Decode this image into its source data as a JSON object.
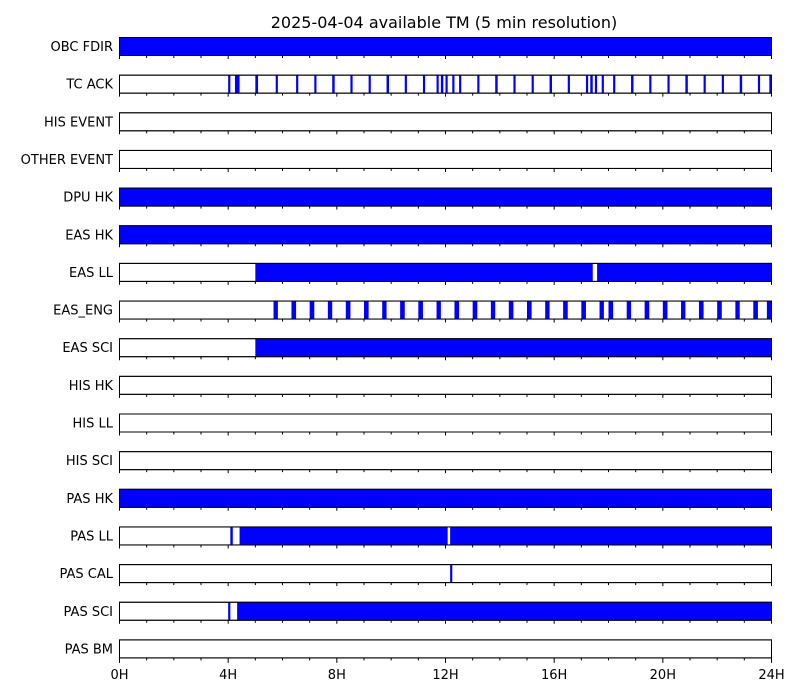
{
  "chart_data": {
    "type": "timeline",
    "title": "2025-04-04 available TM (5 min resolution)",
    "x_unit": "hour",
    "xlim": [
      0,
      24
    ],
    "x_ticks": [
      {
        "value": 0,
        "label": "0H"
      },
      {
        "value": 4,
        "label": "4H"
      },
      {
        "value": 8,
        "label": "8H"
      },
      {
        "value": 12,
        "label": "12H"
      },
      {
        "value": 16,
        "label": "16H"
      },
      {
        "value": 20,
        "label": "20H"
      },
      {
        "value": 24,
        "label": "24H"
      }
    ],
    "minor_tick_step_hours": 1,
    "fill_color": "#0000ff",
    "rows": [
      {
        "label": "OBC FDIR",
        "intervals": [
          [
            0,
            24
          ]
        ]
      },
      {
        "label": "TC ACK",
        "intervals": [
          [
            4.0,
            4.08
          ],
          [
            4.25,
            4.42
          ],
          [
            5.0,
            5.1
          ],
          [
            5.75,
            5.83
          ],
          [
            6.5,
            6.58
          ],
          [
            7.17,
            7.25
          ],
          [
            7.83,
            7.92
          ],
          [
            8.5,
            8.58
          ],
          [
            9.17,
            9.25
          ],
          [
            9.83,
            9.92
          ],
          [
            10.5,
            10.58
          ],
          [
            11.17,
            11.25
          ],
          [
            11.67,
            11.75
          ],
          [
            11.83,
            11.92
          ],
          [
            12.0,
            12.08
          ],
          [
            12.25,
            12.33
          ],
          [
            12.5,
            12.58
          ],
          [
            13.17,
            13.25
          ],
          [
            13.83,
            13.92
          ],
          [
            14.5,
            14.58
          ],
          [
            15.17,
            15.25
          ],
          [
            15.83,
            15.92
          ],
          [
            16.5,
            16.58
          ],
          [
            17.17,
            17.25
          ],
          [
            17.33,
            17.42
          ],
          [
            17.5,
            17.58
          ],
          [
            17.75,
            17.83
          ],
          [
            18.17,
            18.25
          ],
          [
            18.83,
            18.92
          ],
          [
            19.5,
            19.58
          ],
          [
            20.17,
            20.25
          ],
          [
            20.83,
            20.92
          ],
          [
            21.5,
            21.58
          ],
          [
            22.17,
            22.25
          ],
          [
            22.83,
            22.92
          ],
          [
            23.5,
            23.58
          ],
          [
            23.92,
            24.0
          ]
        ]
      },
      {
        "label": "HIS EVENT",
        "intervals": []
      },
      {
        "label": "OTHER EVENT",
        "intervals": []
      },
      {
        "label": "DPU HK",
        "intervals": [
          [
            0,
            24
          ]
        ]
      },
      {
        "label": "EAS HK",
        "intervals": [
          [
            0,
            24
          ]
        ]
      },
      {
        "label": "EAS LL",
        "intervals": [
          [
            5.0,
            17.42
          ],
          [
            17.58,
            24.0
          ]
        ]
      },
      {
        "label": "EAS_ENG",
        "intervals": [
          [
            5.67,
            5.83
          ],
          [
            6.33,
            6.5
          ],
          [
            7.0,
            7.17
          ],
          [
            7.67,
            7.83
          ],
          [
            8.33,
            8.5
          ],
          [
            9.0,
            9.17
          ],
          [
            9.67,
            9.83
          ],
          [
            10.33,
            10.5
          ],
          [
            11.0,
            11.17
          ],
          [
            11.67,
            11.83
          ],
          [
            12.33,
            12.5
          ],
          [
            13.0,
            13.17
          ],
          [
            13.67,
            13.83
          ],
          [
            14.33,
            14.5
          ],
          [
            15.0,
            15.17
          ],
          [
            15.67,
            15.83
          ],
          [
            16.33,
            16.5
          ],
          [
            17.0,
            17.17
          ],
          [
            17.67,
            17.83
          ],
          [
            18.0,
            18.17
          ],
          [
            18.67,
            18.83
          ],
          [
            19.33,
            19.5
          ],
          [
            20.0,
            20.17
          ],
          [
            20.67,
            20.83
          ],
          [
            21.33,
            21.5
          ],
          [
            22.0,
            22.17
          ],
          [
            22.67,
            22.83
          ],
          [
            23.33,
            23.5
          ],
          [
            23.83,
            24.0
          ]
        ]
      },
      {
        "label": "EAS SCI",
        "intervals": [
          [
            5.0,
            24.0
          ]
        ]
      },
      {
        "label": "HIS HK",
        "intervals": []
      },
      {
        "label": "HIS LL",
        "intervals": []
      },
      {
        "label": "HIS SCI",
        "intervals": []
      },
      {
        "label": "PAS HK",
        "intervals": [
          [
            0,
            24
          ]
        ]
      },
      {
        "label": "PAS LL",
        "intervals": [
          [
            4.08,
            4.17
          ],
          [
            4.42,
            12.08
          ],
          [
            12.17,
            24.0
          ]
        ]
      },
      {
        "label": "PAS CAL",
        "intervals": [
          [
            12.17,
            12.25
          ]
        ]
      },
      {
        "label": "PAS SCI",
        "intervals": [
          [
            4.0,
            4.08
          ],
          [
            4.33,
            24.0
          ]
        ]
      },
      {
        "label": "PAS BM",
        "intervals": []
      }
    ]
  }
}
